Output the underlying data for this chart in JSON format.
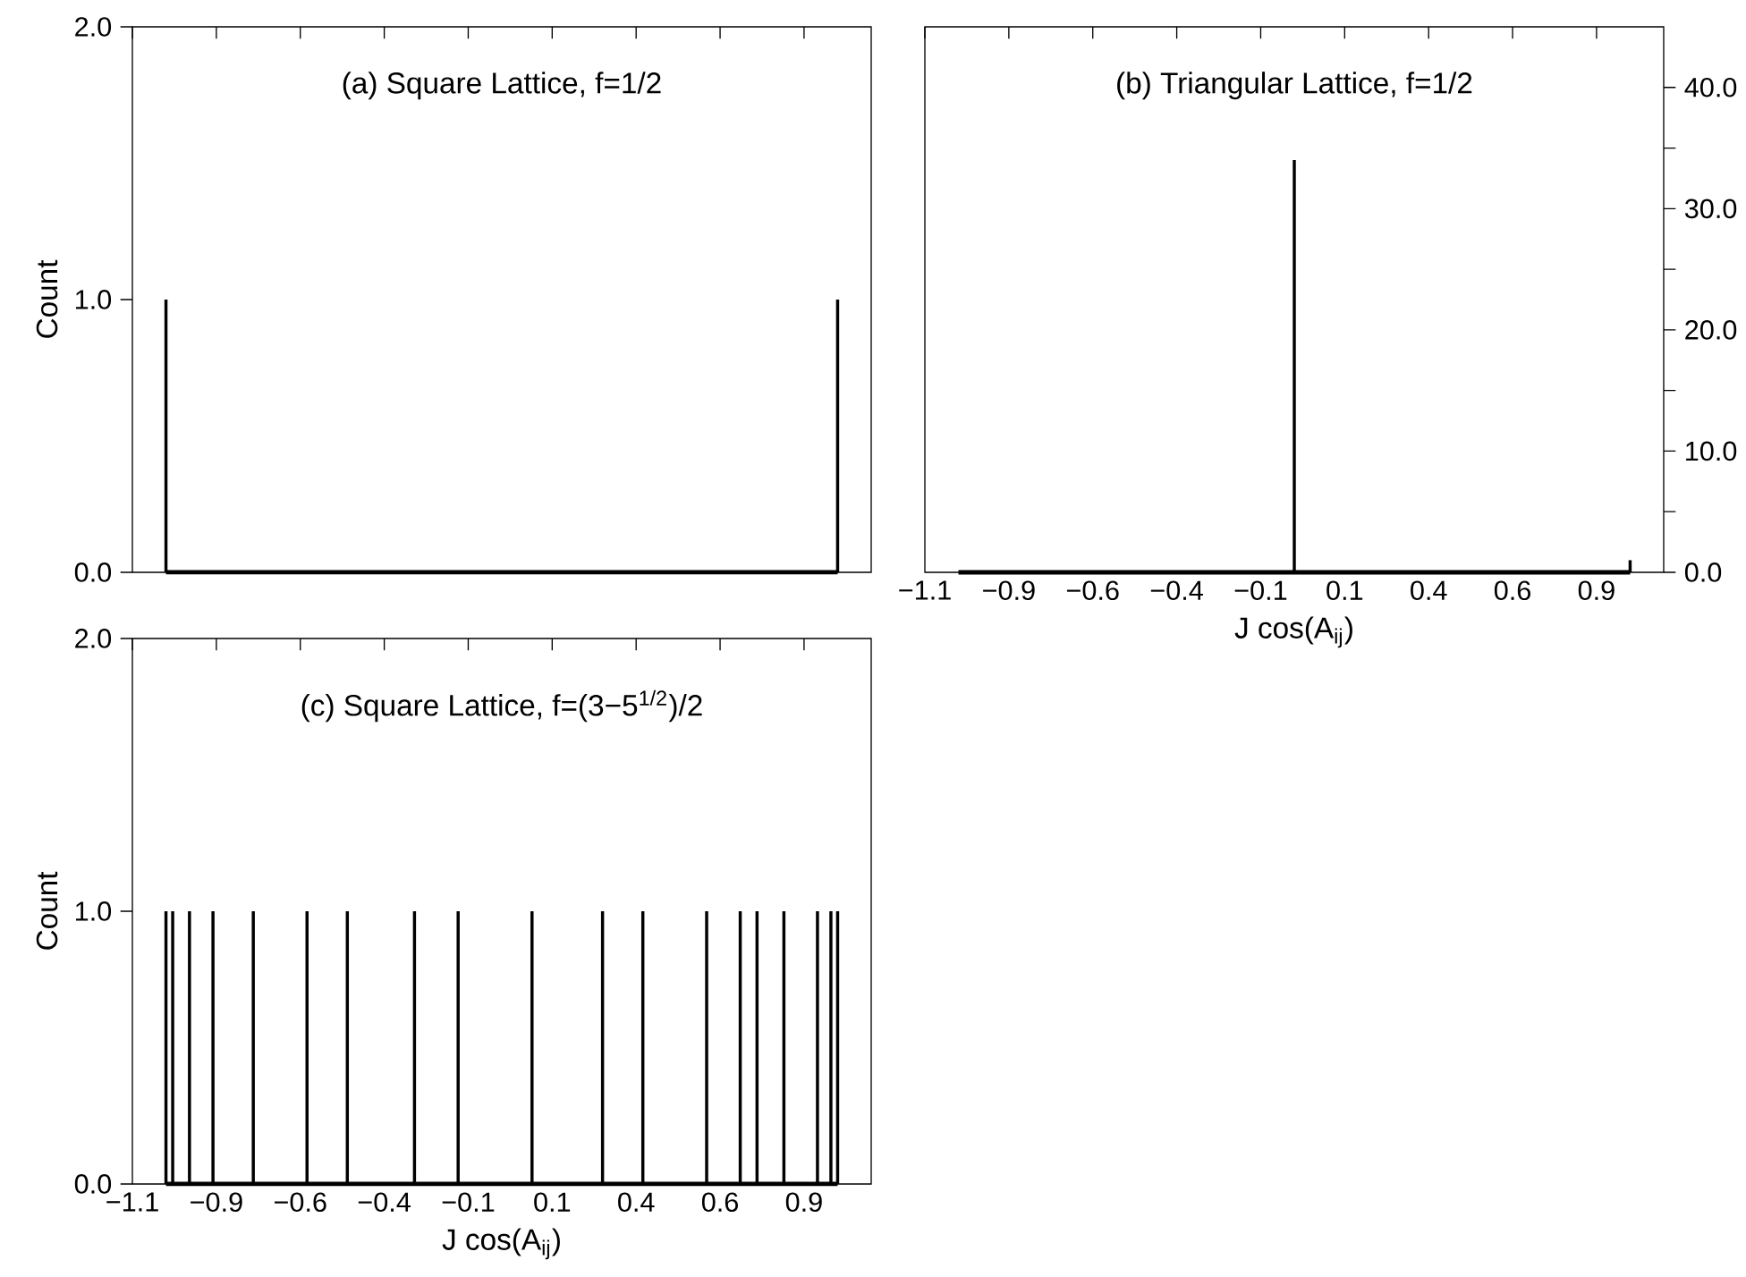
{
  "chart_data": [
    {
      "type": "bar",
      "title": "(a)     Square Lattice,  f=1/2",
      "ylabel": "Count",
      "tick_labels": "y",
      "xlim": [
        -1.1,
        1.1
      ],
      "xticks": [
        {
          "value": -1.1,
          "label": null
        },
        {
          "value": -0.85,
          "label": null
        },
        {
          "value": -0.6,
          "label": null
        },
        {
          "value": -0.35,
          "label": null
        },
        {
          "value": -0.1,
          "label": null
        },
        {
          "value": 0.15,
          "label": null
        },
        {
          "value": 0.4,
          "label": null
        },
        {
          "value": 0.65,
          "label": null
        },
        {
          "value": 0.9,
          "label": null
        }
      ],
      "ylim": [
        0,
        2
      ],
      "yticks": [
        {
          "value": 0,
          "label": "0.0"
        },
        {
          "value": 1,
          "label": "1.0"
        },
        {
          "value": 2,
          "label": "2.0"
        }
      ],
      "series": [
        {
          "color": "#000000",
          "x": [
            -1.0,
            1.0
          ],
          "values": [
            1,
            1
          ]
        },
        {
          "type": "line",
          "color": "#000000",
          "x": [
            -1.0,
            1.0
          ],
          "values": [
            0,
            0
          ]
        }
      ]
    },
    {
      "type": "bar",
      "title": "(b)     Triangular Lattice,  f=1/2",
      "xlabel": "J cos(A$_{ij}$)",
      "xlim": [
        -1.1,
        1.1
      ],
      "xticks": [
        {
          "value": -1.1,
          "label": "−1.1"
        },
        {
          "value": -0.85,
          "label": "−0.9"
        },
        {
          "value": -0.6,
          "label": "−0.6"
        },
        {
          "value": -0.35,
          "label": "−0.4"
        },
        {
          "value": -0.1,
          "label": "−0.1"
        },
        {
          "value": 0.15,
          "label": "0.1"
        },
        {
          "value": 0.4,
          "label": "0.4"
        },
        {
          "value": 0.65,
          "label": "0.6"
        },
        {
          "value": 0.9,
          "label": "0.9"
        }
      ],
      "y2lim": [
        0,
        45
      ],
      "y2ticks": [
        {
          "value": 0,
          "label": "0.0"
        },
        {
          "value": 5,
          "label": null
        },
        {
          "value": 10,
          "label": "10.0"
        },
        {
          "value": 15,
          "label": null
        },
        {
          "value": 20,
          "label": "20.0"
        },
        {
          "value": 25,
          "label": null
        },
        {
          "value": 30,
          "label": "30.0"
        },
        {
          "value": 35,
          "label": null
        },
        {
          "value": 40,
          "label": "40.0"
        }
      ],
      "series": [
        {
          "axis": "y2",
          "color": "#000000",
          "x": [
            0.0,
            1.0
          ],
          "values": [
            34,
            1
          ]
        },
        {
          "type": "line",
          "axis": "y2",
          "color": "#000000",
          "x": [
            -1.0,
            1.0
          ],
          "values": [
            0,
            0
          ]
        }
      ]
    },
    {
      "type": "bar",
      "title": "(c)     Square Lattice,  f=(3−5$^{1/2}$)/2",
      "xlabel": "J cos(A$_{ij}$)",
      "ylabel": "Count",
      "xlim": [
        -1.1,
        1.1
      ],
      "xticks": [
        {
          "value": -1.1,
          "label": "−1.1"
        },
        {
          "value": -0.85,
          "label": "−0.9"
        },
        {
          "value": -0.6,
          "label": "−0.6"
        },
        {
          "value": -0.35,
          "label": "−0.4"
        },
        {
          "value": -0.1,
          "label": "−0.1"
        },
        {
          "value": 0.15,
          "label": "0.1"
        },
        {
          "value": 0.4,
          "label": "0.4"
        },
        {
          "value": 0.65,
          "label": "0.6"
        },
        {
          "value": 0.9,
          "label": "0.9"
        }
      ],
      "ylim": [
        0,
        2
      ],
      "yticks": [
        {
          "value": 0,
          "label": "0.0"
        },
        {
          "value": 1,
          "label": "1.0"
        },
        {
          "value": 2,
          "label": "2.0"
        }
      ],
      "series": [
        {
          "color": "#000000",
          "x": [
            -1.0,
            -0.98,
            -0.93,
            -0.86,
            -0.74,
            -0.58,
            -0.46,
            -0.26,
            -0.13,
            0.09,
            0.3,
            0.42,
            0.61,
            0.71,
            0.76,
            0.84,
            0.94,
            0.98,
            1.0
          ],
          "values": [
            1,
            1,
            1,
            1,
            1,
            1,
            1,
            1,
            1,
            1,
            1,
            1,
            1,
            1,
            1,
            1,
            1,
            1,
            1
          ]
        },
        {
          "type": "line",
          "color": "#000000",
          "x": [
            -1.0,
            1.0
          ],
          "values": [
            0,
            0
          ]
        }
      ]
    }
  ]
}
